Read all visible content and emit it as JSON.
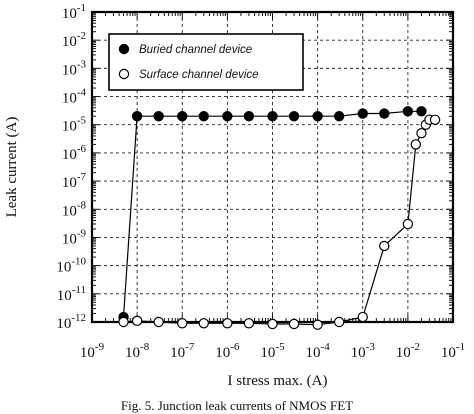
{
  "chart_data": {
    "type": "scatter",
    "scale": {
      "x": "log",
      "y": "log"
    },
    "xlim": [
      1e-09,
      0.1
    ],
    "ylim": [
      1e-12,
      0.1
    ],
    "xlabel": "I stress max. (A)",
    "ylabel": "Leak current (A)",
    "grid": true,
    "legend_position": "top-left",
    "x_ticks": [
      {
        "base": "10",
        "exp": "-9"
      },
      {
        "base": "10",
        "exp": "-8"
      },
      {
        "base": "10",
        "exp": "-7"
      },
      {
        "base": "10",
        "exp": "-6"
      },
      {
        "base": "10",
        "exp": "-5"
      },
      {
        "base": "10",
        "exp": "-4"
      },
      {
        "base": "10",
        "exp": "-3"
      },
      {
        "base": "10",
        "exp": "-2"
      },
      {
        "base": "10",
        "exp": "-1"
      }
    ],
    "y_ticks": [
      {
        "base": "10",
        "exp": "-1"
      },
      {
        "base": "10",
        "exp": "-2"
      },
      {
        "base": "10",
        "exp": "-3"
      },
      {
        "base": "10",
        "exp": "-4"
      },
      {
        "base": "10",
        "exp": "-5"
      },
      {
        "base": "10",
        "exp": "-6"
      },
      {
        "base": "10",
        "exp": "-7"
      },
      {
        "base": "10",
        "exp": "-8"
      },
      {
        "base": "10",
        "exp": "-9"
      },
      {
        "base": "10",
        "exp": "-10"
      },
      {
        "base": "10",
        "exp": "-11"
      },
      {
        "base": "10",
        "exp": "-12"
      }
    ],
    "series": [
      {
        "name": "Buried channel device",
        "marker": "filled-circle",
        "color": "#000000",
        "points": [
          {
            "x": 5e-09,
            "y": 1.5e-12
          },
          {
            "x": 1e-08,
            "y": 2e-05
          },
          {
            "x": 3e-08,
            "y": 2e-05
          },
          {
            "x": 1e-07,
            "y": 2e-05
          },
          {
            "x": 3e-07,
            "y": 2e-05
          },
          {
            "x": 1e-06,
            "y": 2e-05
          },
          {
            "x": 3e-06,
            "y": 2e-05
          },
          {
            "x": 1e-05,
            "y": 2e-05
          },
          {
            "x": 3e-05,
            "y": 2e-05
          },
          {
            "x": 0.0001,
            "y": 2e-05
          },
          {
            "x": 0.0003,
            "y": 2e-05
          },
          {
            "x": 0.001,
            "y": 2.5e-05
          },
          {
            "x": 0.003,
            "y": 2.5e-05
          },
          {
            "x": 0.01,
            "y": 3e-05
          },
          {
            "x": 0.02,
            "y": 3e-05
          }
        ]
      },
      {
        "name": "Surface channel device",
        "marker": "open-circle",
        "color": "#000000",
        "points": [
          {
            "x": 5e-09,
            "y": 1e-12
          },
          {
            "x": 1e-08,
            "y": 1.1e-12
          },
          {
            "x": 3e-08,
            "y": 1e-12
          },
          {
            "x": 1e-07,
            "y": 9e-13
          },
          {
            "x": 3e-07,
            "y": 9e-13
          },
          {
            "x": 1e-06,
            "y": 9e-13
          },
          {
            "x": 3e-06,
            "y": 9e-13
          },
          {
            "x": 1e-05,
            "y": 8.5e-13
          },
          {
            "x": 3e-05,
            "y": 8.5e-13
          },
          {
            "x": 0.0001,
            "y": 8e-13
          },
          {
            "x": 0.0003,
            "y": 1e-12
          },
          {
            "x": 0.001,
            "y": 1.5e-12
          },
          {
            "x": 0.003,
            "y": 5e-10
          },
          {
            "x": 0.01,
            "y": 3e-09
          },
          {
            "x": 0.015,
            "y": 2e-06
          },
          {
            "x": 0.02,
            "y": 5e-06
          },
          {
            "x": 0.025,
            "y": 1e-05
          },
          {
            "x": 0.03,
            "y": 1.5e-05
          },
          {
            "x": 0.04,
            "y": 1.5e-05
          }
        ]
      }
    ]
  },
  "caption": "Fig. 5. Junction leak currents of NMOS FET"
}
